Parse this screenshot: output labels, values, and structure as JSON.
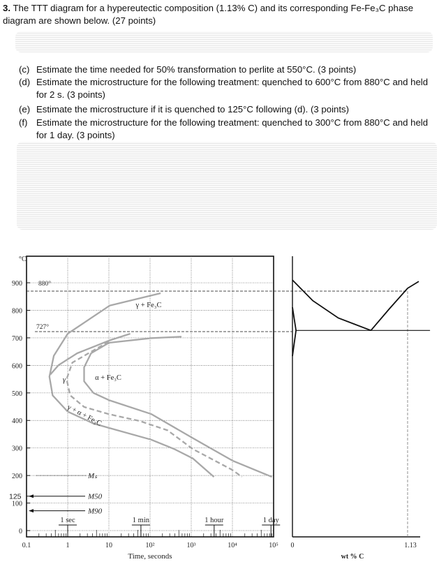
{
  "question": {
    "number": "3.",
    "text": "The TTT diagram for a hypereutectic composition (1.13% C) and its corresponding Fe-Fe₃C phase diagram are shown below. (27 points)",
    "items": [
      {
        "label": "(c)",
        "text": "Estimate the time needed for 50% transformation to perlite at 550°C. (3 points)"
      },
      {
        "label": "(d)",
        "text": "Estimate the microstructure for the following treatment: quenched to 600°C from 880°C and held for 2 s. (3 points)"
      },
      {
        "label": "(e)",
        "text": "Estimate the microstructure if it is quenched to 125°C following (d). (3 points)"
      },
      {
        "label": "(f)",
        "text": "Estimate the microstructure for the following treatment: quenched to 300°C from 880°C and held for 1 day. (3 points)"
      }
    ]
  },
  "chart_data": [
    {
      "type": "line",
      "xlabel": "Time, seconds",
      "ylabel": "°C",
      "xscale": "log",
      "xlim": [
        0.1,
        100000
      ],
      "ylim": [
        0,
        950
      ],
      "grid": true,
      "xticks": [
        {
          "v": 0.1,
          "l": "0.1"
        },
        {
          "v": 1,
          "l": "1"
        },
        {
          "v": 10,
          "l": "10"
        },
        {
          "v": 100,
          "l": "10²"
        },
        {
          "v": 1000,
          "l": "10³"
        },
        {
          "v": 10000,
          "l": "10⁴"
        },
        {
          "v": 100000,
          "l": "10⁵"
        }
      ],
      "yticks": [
        0,
        100,
        200,
        300,
        400,
        500,
        600,
        700,
        800,
        900
      ],
      "extra_ytick": "125",
      "time_markers": [
        {
          "t": 1,
          "label": "1 sec"
        },
        {
          "t": 60,
          "label": "1 min"
        },
        {
          "t": 3600,
          "label": "1 hour"
        },
        {
          "t": 86400,
          "label": "1 day"
        }
      ],
      "reference_lines": [
        {
          "T": 880,
          "label": "880°"
        },
        {
          "T": 727,
          "label": "727°"
        }
      ],
      "martensite": [
        {
          "T": 200,
          "label": "Mₛ",
          "sub": "s",
          "base": "M"
        },
        {
          "T": 125,
          "label": "M50",
          "sub": "50",
          "base": "M"
        },
        {
          "T": 72,
          "label": "M90",
          "sub": "90",
          "base": "M"
        }
      ],
      "region_labels": {
        "gamma": "γ",
        "gamma_fe3c": "γ + Fe₃C",
        "alpha_fe3c": "α + Fe₃C",
        "mixed": "γ + α + Fe₃C"
      },
      "curves": [
        {
          "style": "solid",
          "points": [
            [
              180,
              862
            ],
            [
              10.4,
              817
            ],
            [
              1,
              715
            ],
            [
              0.46,
              635
            ],
            [
              0.36,
              559
            ],
            [
              0.43,
              491
            ],
            [
              1,
              432
            ],
            [
              4.2,
              389
            ],
            [
              10,
              373
            ],
            [
              107,
              330
            ],
            [
              390,
              296
            ],
            [
              1100,
              262
            ],
            [
              3550,
              195
            ]
          ]
        },
        {
          "style": "solid",
          "points": [
            [
              33,
              715
            ],
            [
              10,
              690
            ],
            [
              1.7,
              644
            ],
            [
              0.6,
              601
            ],
            [
              0.38,
              567
            ]
          ]
        },
        {
          "style": "dashed",
          "points": [
            [
              10,
              686
            ],
            [
              3.2,
              644
            ],
            [
              1.3,
              610
            ],
            [
              0.94,
              550
            ],
            [
              1.15,
              491
            ],
            [
              2.5,
              449
            ],
            [
              10,
              423
            ],
            [
              56,
              398
            ],
            [
              266,
              364
            ],
            [
              1100,
              296
            ],
            [
              10000,
              220
            ],
            [
              17000,
              195
            ]
          ]
        },
        {
          "style": "solid",
          "points": [
            [
              580,
              704
            ],
            [
              108,
              699
            ],
            [
              10,
              682
            ],
            [
              3.7,
              644
            ],
            [
              2.5,
              593
            ],
            [
              2.5,
              542
            ],
            [
              4.2,
              500
            ],
            [
              10,
              474
            ],
            [
              108,
              423
            ],
            [
              1000,
              339
            ],
            [
              10000,
              254
            ],
            [
              91000,
              195
            ]
          ]
        }
      ],
      "color": "#a8a8a8"
    },
    {
      "type": "line",
      "xlabel": "wt % C",
      "xticks": [
        {
          "v": 0,
          "l": "0"
        },
        {
          "v": 1.13,
          "l": "1.13"
        }
      ],
      "xlim": [
        0,
        1.3
      ],
      "composition_line": 1.13,
      "eutectoid_T": 727,
      "curves": [
        {
          "name": "A3",
          "points": [
            [
              0,
              910
            ],
            [
              0.2,
              835
            ],
            [
              0.45,
              772
            ],
            [
              0.77,
              727
            ]
          ]
        },
        {
          "name": "Acm",
          "points": [
            [
              0.77,
              727
            ],
            [
              0.95,
              805
            ],
            [
              1.13,
              880
            ],
            [
              1.24,
              905
            ]
          ]
        },
        {
          "name": "alpha",
          "points": [
            [
              0,
              811
            ],
            [
              0.035,
              727
            ],
            [
              0,
              634
            ]
          ]
        },
        {
          "name": "eutectoid",
          "points": [
            [
              0.035,
              727
            ],
            [
              1.35,
              727
            ]
          ]
        }
      ],
      "color": "#111111"
    }
  ]
}
